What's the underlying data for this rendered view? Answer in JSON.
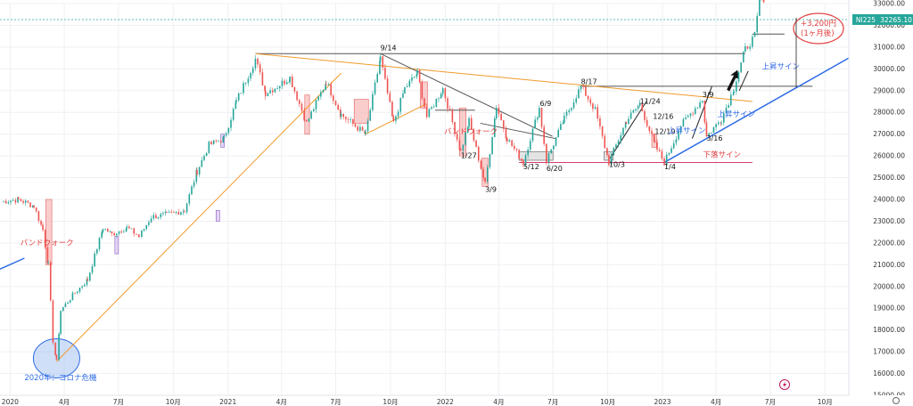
{
  "chart_data": {
    "type": "candlestick",
    "symbol": "NI225",
    "last_price_text": "32265.10",
    "ylim": [
      15000,
      33000
    ],
    "y_ticks": [
      15000,
      16000,
      17000,
      18000,
      19000,
      20000,
      21000,
      22000,
      23000,
      24000,
      25000,
      26000,
      27000,
      28000,
      29000,
      30000,
      31000,
      32000,
      33000
    ],
    "y_tick_labels": [
      "15000.00",
      "16000.00",
      "17000.00",
      "18000.00",
      "19000.00",
      "20000.00",
      "21000.00",
      "22000.00",
      "23000.00",
      "24000.00",
      "25000.00",
      "26000.00",
      "27000.00",
      "28000.00",
      "29000.00",
      "30000.00",
      "31000.00",
      "32000.00",
      "33000.00"
    ],
    "xlim": [
      "2019-12-15",
      "2023-11-10"
    ],
    "x_ticks": [
      {
        "date": "2020-01-01",
        "label": "2020"
      },
      {
        "date": "2020-04-01",
        "label": "4月"
      },
      {
        "date": "2020-07-01",
        "label": "7月"
      },
      {
        "date": "2020-10-01",
        "label": "10月"
      },
      {
        "date": "2021-01-01",
        "label": "2021"
      },
      {
        "date": "2021-04-01",
        "label": "4月"
      },
      {
        "date": "2021-07-01",
        "label": "7月"
      },
      {
        "date": "2021-10-01",
        "label": "10月"
      },
      {
        "date": "2022-01-01",
        "label": "2022"
      },
      {
        "date": "2022-04-01",
        "label": "4月"
      },
      {
        "date": "2022-07-01",
        "label": "7月"
      },
      {
        "date": "2022-10-01",
        "label": "10月"
      },
      {
        "date": "2023-01-01",
        "label": "2023"
      },
      {
        "date": "2023-04-01",
        "label": "4月"
      },
      {
        "date": "2023-07-01",
        "label": "7月"
      },
      {
        "date": "2023-10-01",
        "label": "10月"
      }
    ],
    "price_path": [
      [
        "2019-12-17",
        23900
      ],
      [
        "2020-01-15",
        24000
      ],
      [
        "2020-02-10",
        23700
      ],
      [
        "2020-02-25",
        22600
      ],
      [
        "2020-03-05",
        21000
      ],
      [
        "2020-03-13",
        17500
      ],
      [
        "2020-03-19",
        16550
      ],
      [
        "2020-03-26",
        18900
      ],
      [
        "2020-04-15",
        19600
      ],
      [
        "2020-05-10",
        20300
      ],
      [
        "2020-06-05",
        22700
      ],
      [
        "2020-06-20",
        22400
      ],
      [
        "2020-07-15",
        22700
      ],
      [
        "2020-08-05",
        22300
      ],
      [
        "2020-08-25",
        23200
      ],
      [
        "2020-09-20",
        23300
      ],
      [
        "2020-10-20",
        23500
      ],
      [
        "2020-11-10",
        25300
      ],
      [
        "2020-11-30",
        26500
      ],
      [
        "2020-12-25",
        26800
      ],
      [
        "2021-01-15",
        28500
      ],
      [
        "2021-02-16",
        30450
      ],
      [
        "2021-03-05",
        28900
      ],
      [
        "2021-03-25",
        29200
      ],
      [
        "2021-04-15",
        29600
      ],
      [
        "2021-05-13",
        27500
      ],
      [
        "2021-06-15",
        29400
      ],
      [
        "2021-07-10",
        27900
      ],
      [
        "2021-08-20",
        27000
      ],
      [
        "2021-09-14",
        30500
      ],
      [
        "2021-10-06",
        27500
      ],
      [
        "2021-10-25",
        29100
      ],
      [
        "2021-11-15",
        29800
      ],
      [
        "2021-12-01",
        27800
      ],
      [
        "2021-12-28",
        29100
      ],
      [
        "2022-01-27",
        26200
      ],
      [
        "2022-02-10",
        27600
      ],
      [
        "2022-03-09",
        24700
      ],
      [
        "2022-03-28",
        28300
      ],
      [
        "2022-04-15",
        26800
      ],
      [
        "2022-05-12",
        25700
      ],
      [
        "2022-06-08",
        28200
      ],
      [
        "2022-06-20",
        25800
      ],
      [
        "2022-07-20",
        27700
      ],
      [
        "2022-08-17",
        29200
      ],
      [
        "2022-09-10",
        28100
      ],
      [
        "2022-10-03",
        25700
      ],
      [
        "2022-11-01",
        27600
      ],
      [
        "2022-11-24",
        28400
      ],
      [
        "2022-12-19",
        26500
      ],
      [
        "2023-01-04",
        25700
      ],
      [
        "2023-02-01",
        27400
      ],
      [
        "2023-03-09",
        28600
      ],
      [
        "2023-03-16",
        26900
      ],
      [
        "2023-04-10",
        27700
      ],
      [
        "2023-05-01",
        29100
      ],
      [
        "2023-05-20",
        30900
      ],
      [
        "2023-06-05",
        31500
      ],
      [
        "2023-06-16",
        33700
      ],
      [
        "2023-06-23",
        32300
      ]
    ],
    "support_lines": [
      {
        "kind": "horizontal",
        "color": "#555555",
        "y": 30700,
        "x0": "2021-02-16",
        "x1": "2023-05-20"
      },
      {
        "kind": "horizontal",
        "color": "#555555",
        "y": 29200,
        "x0": "2022-08-17",
        "x1": "2023-09-10"
      },
      {
        "kind": "horizontal",
        "color": "#555555",
        "y": 31600,
        "x0": "2023-06-01",
        "x1": "2023-07-25"
      },
      {
        "kind": "horizontal",
        "color": "#d63a6c",
        "y": 25700,
        "x0": "2022-05-05",
        "x1": "2023-06-01"
      },
      {
        "kind": "horizontal",
        "color": "#555555",
        "y": 28100,
        "x0": "2021-12-15",
        "x1": "2022-02-20"
      },
      {
        "kind": "diagonal",
        "color": "#f09a2a",
        "x0": "2021-02-16",
        "y0": 30700,
        "x1": "2023-06-01",
        "y1": 28500
      },
      {
        "kind": "diagonal",
        "color": "#f09a2a",
        "x0": "2020-03-19",
        "y0": 16550,
        "x1": "2021-07-10",
        "y1": 29800
      },
      {
        "kind": "diagonal",
        "color": "#f09a2a",
        "x0": "2021-08-20",
        "y0": 27000,
        "x1": "2021-12-01",
        "y1": 28400
      },
      {
        "kind": "diagonal",
        "color": "#555555",
        "x0": "2021-09-14",
        "y0": 30700,
        "x1": "2022-06-30",
        "y1": 26900
      },
      {
        "kind": "diagonal",
        "color": "#555555",
        "x0": "2022-03-01",
        "y0": 27500,
        "x1": "2022-07-05",
        "y1": 26800
      },
      {
        "kind": "diagonal",
        "color": "#2e6be6",
        "x0": "2019-12-15",
        "y0": 20800,
        "x1": "2020-01-25",
        "y1": 21300
      },
      {
        "kind": "diagonal",
        "color": "#2e6be6",
        "x0": "2023-01-04",
        "y0": 25700,
        "x1": "2023-11-10",
        "y1": 30500
      }
    ],
    "annotations": [
      {
        "text": "9/14",
        "date": "2021-09-14",
        "price": 30850,
        "color": "#111111"
      },
      {
        "text": "6/9",
        "date": "2022-06-09",
        "price": 28300,
        "color": "#111111"
      },
      {
        "text": "8/17",
        "date": "2022-08-17",
        "price": 29300,
        "color": "#111111"
      },
      {
        "text": "11/24",
        "date": "2022-11-24",
        "price": 28400,
        "color": "#111111"
      },
      {
        "text": "12/16",
        "date": "2022-12-16",
        "price": 27700,
        "color": "#111111"
      },
      {
        "text": "12/19",
        "date": "2022-12-19",
        "price": 27000,
        "color": "#111111"
      },
      {
        "text": "3/9",
        "date": "2023-03-09",
        "price": 28700,
        "color": "#111111"
      },
      {
        "text": "3/16",
        "date": "2023-03-16",
        "price": 26700,
        "color": "#111111"
      },
      {
        "text": "1/27",
        "date": "2022-01-27",
        "price": 25900,
        "color": "#111111"
      },
      {
        "text": "3/9",
        "date": "2022-03-09",
        "price": 24350,
        "color": "#111111"
      },
      {
        "text": "5/12",
        "date": "2022-05-12",
        "price": 25400,
        "color": "#111111"
      },
      {
        "text": "6/20",
        "date": "2022-06-20",
        "price": 25300,
        "color": "#111111"
      },
      {
        "text": "10/3",
        "date": "2022-10-03",
        "price": 25500,
        "color": "#111111"
      },
      {
        "text": "1/4",
        "date": "2023-01-04",
        "price": 25400,
        "color": "#111111"
      },
      {
        "text": "バンドウォーク",
        "date": "2020-01-18",
        "price": 21900,
        "color": "#e23d3d"
      },
      {
        "text": "バンドウォーク",
        "date": "2021-12-30",
        "price": 27000,
        "color": "#e23d3d"
      },
      {
        "text": "上昇サイン",
        "date": "2023-06-17",
        "price": 30000,
        "color": "#2e6be6"
      },
      {
        "text": "上昇サイン",
        "date": "2023-04-03",
        "price": 27800,
        "color": "#2e6be6"
      },
      {
        "text": "上昇サイン",
        "date": "2023-01-10",
        "price": 27050,
        "color": "#2e6be6"
      },
      {
        "text": "下落サイン",
        "date": "2023-03-10",
        "price": 25950,
        "color": "#e23d3d"
      },
      {
        "text": "2020年：コロナ危機",
        "date": "2020-01-25",
        "price": 15700,
        "color": "#2e6be6"
      }
    ],
    "callout": {
      "line1": "+3,200円",
      "line2": "(1ヶ月後)",
      "color": "#e23d3d"
    }
  }
}
